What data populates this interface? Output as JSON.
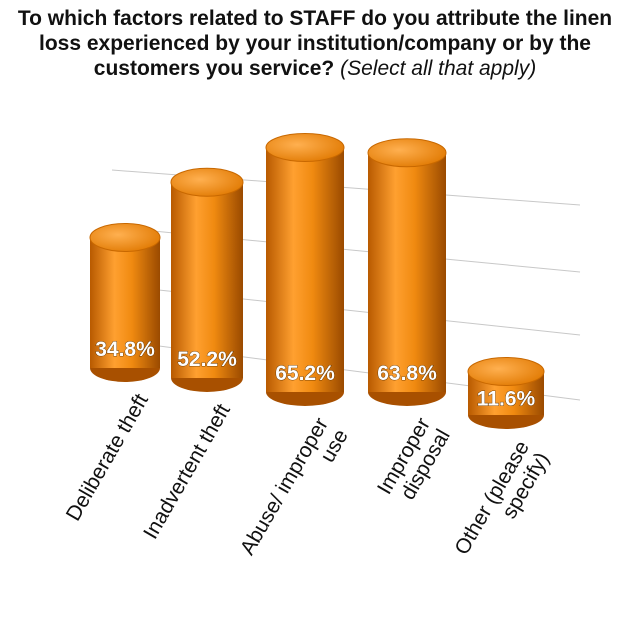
{
  "chart_data": {
    "type": "bar",
    "title": "To which factors related to STAFF do you attribute the linen loss experienced by your institution/company or by the customers you service?",
    "subtitle": "(Select all that apply)",
    "categories": [
      "Deliberate theft",
      "Inadvertent theft",
      "Abuse/ improper use",
      "Improper disposal",
      "Other (please specify)"
    ],
    "values": [
      34.8,
      52.2,
      65.2,
      63.8,
      11.6
    ],
    "value_labels": [
      "34.8%",
      "52.2%",
      "65.2%",
      "63.8%",
      "11.6%"
    ],
    "color": "#f08a10"
  }
}
